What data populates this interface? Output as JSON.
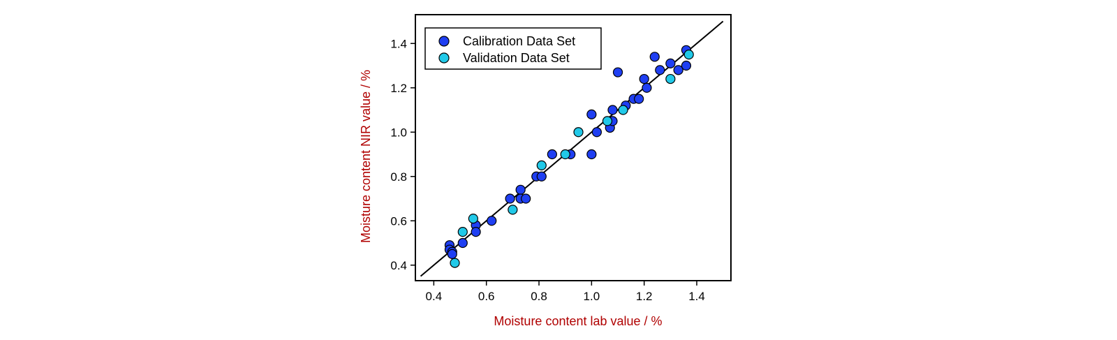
{
  "colors": {
    "calibration": "#1f3ff2",
    "validation": "#21c9e8",
    "axis_title": "#b00000",
    "marker_edge": "#000000",
    "fit_line": "#000000"
  },
  "chart_data": {
    "type": "scatter",
    "title": "",
    "xlabel": "Moisture content lab value / %",
    "ylabel": "Moisture content NIR value / %",
    "xlim": [
      0.33,
      1.53
    ],
    "ylim": [
      0.33,
      1.53
    ],
    "xticks": [
      0.4,
      0.6,
      0.8,
      1.0,
      1.2,
      1.4
    ],
    "yticks": [
      0.4,
      0.6,
      0.8,
      1.0,
      1.2,
      1.4
    ],
    "xtick_labels": [
      "0.4",
      "0.6",
      "0.8",
      "1.0",
      "1.2",
      "1.4"
    ],
    "ytick_labels": [
      "0.4",
      "0.6",
      "0.8",
      "1.0",
      "1.2",
      "1.4"
    ],
    "grid": false,
    "legend_position": "top-left",
    "fit_line": {
      "x": [
        0.35,
        1.5
      ],
      "y": [
        0.35,
        1.5
      ]
    },
    "series": [
      {
        "name": "Calibration Data Set",
        "x": [
          0.46,
          0.46,
          0.47,
          0.47,
          0.51,
          0.56,
          0.56,
          0.62,
          0.69,
          0.73,
          0.73,
          0.75,
          0.79,
          0.81,
          0.85,
          0.92,
          1.0,
          1.0,
          1.02,
          1.07,
          1.08,
          1.08,
          1.1,
          1.13,
          1.16,
          1.18,
          1.2,
          1.21,
          1.24,
          1.26,
          1.3,
          1.33,
          1.36,
          1.36
        ],
        "y": [
          0.49,
          0.47,
          0.46,
          0.45,
          0.5,
          0.58,
          0.55,
          0.6,
          0.7,
          0.74,
          0.7,
          0.7,
          0.8,
          0.8,
          0.9,
          0.9,
          1.08,
          0.9,
          1.0,
          1.02,
          1.05,
          1.1,
          1.27,
          1.12,
          1.15,
          1.15,
          1.24,
          1.2,
          1.34,
          1.28,
          1.31,
          1.28,
          1.37,
          1.3
        ]
      },
      {
        "name": "Validation Data Set",
        "x": [
          0.48,
          0.51,
          0.55,
          0.7,
          0.81,
          0.9,
          0.95,
          1.06,
          1.12,
          1.3,
          1.37
        ],
        "y": [
          0.41,
          0.55,
          0.61,
          0.65,
          0.85,
          0.9,
          1.0,
          1.05,
          1.1,
          1.24,
          1.35
        ]
      }
    ]
  }
}
